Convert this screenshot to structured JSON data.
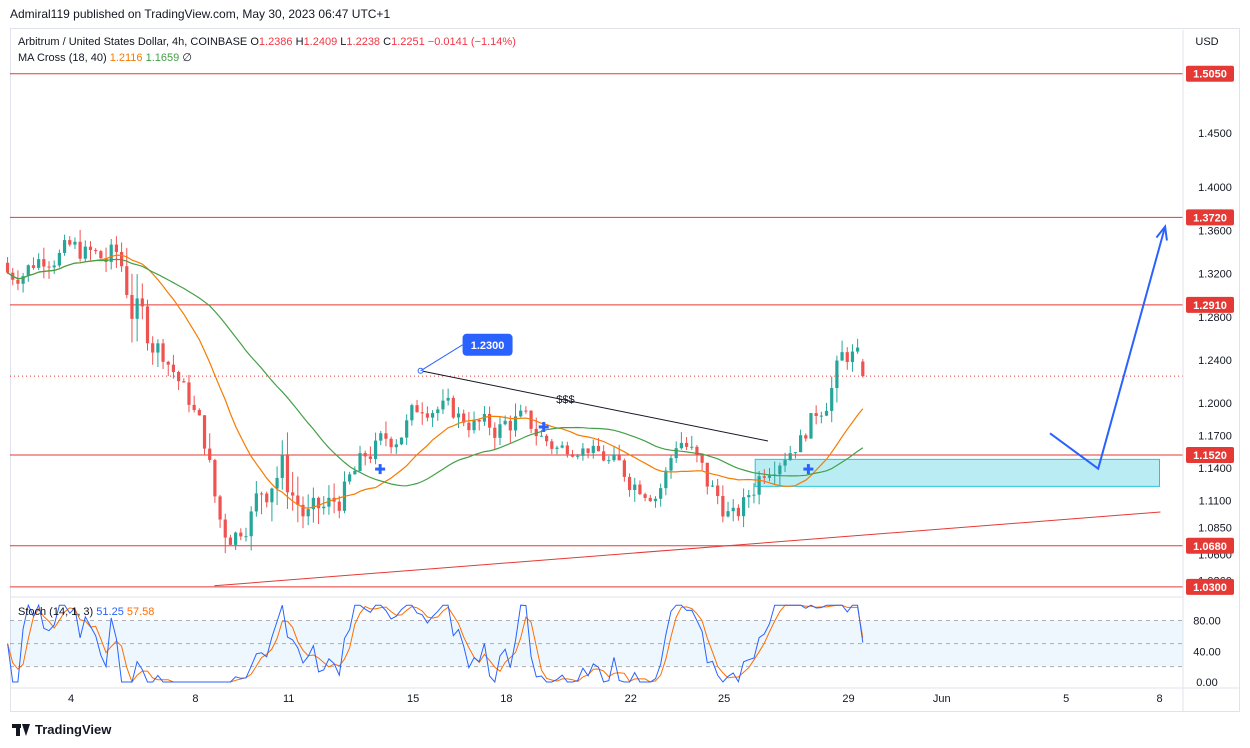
{
  "publisher": "Admiral119 published on TradingView.com, May 30, 2023 06:47 UTC+1",
  "legend": {
    "symbol": "Arbitrum / United States Dollar, 4h, COINBASE",
    "o_label": "O",
    "o": "1.2386",
    "h_label": "H",
    "h": "1.2409",
    "l_label": "L",
    "l": "1.2238",
    "c_label": "C",
    "c": "1.2251",
    "change": "−0.0141 (−1.14%)",
    "ma_label": "MA Cross (18, 40)",
    "ma_fast": "1.2116",
    "ma_slow": "1.1659",
    "ma_icon": "∅"
  },
  "stoch_legend": {
    "label": "Stoch (14, 1, 3)",
    "k": "51.25",
    "d": "57.58"
  },
  "footer": {
    "brand": "TradingView"
  },
  "colors": {
    "up": "#26a69a",
    "down": "#ef5350",
    "level": "#e53935",
    "ma_fast": "#f57c00",
    "ma_slow": "#43a047",
    "arrow": "#2962ff",
    "zone": "#80deea",
    "stoch_k": "#2962ff",
    "stoch_d": "#ff6d00"
  },
  "chart_data": {
    "type": "candlestick",
    "symbol": "ARB/USD",
    "timeframe": "4h",
    "currency": "USD",
    "ylim": [
      1.0215,
      1.5455
    ],
    "price_ticks": [
      "1.4500",
      "1.4000",
      "1.3600",
      "1.3200",
      "1.2800",
      "1.2400",
      "1.2000",
      "1.1700",
      "1.1400",
      "1.1100",
      "1.0850",
      "1.0600",
      "1.0360"
    ],
    "x_ticks": [
      {
        "label": "4",
        "day": 4
      },
      {
        "label": "8",
        "day": 8
      },
      {
        "label": "11",
        "day": 11
      },
      {
        "label": "15",
        "day": 15
      },
      {
        "label": "18",
        "day": 18
      },
      {
        "label": "22",
        "day": 22
      },
      {
        "label": "25",
        "day": 25
      },
      {
        "label": "29",
        "day": 29
      },
      {
        "label": "Jun",
        "day": 32
      },
      {
        "label": "5",
        "day": 36
      },
      {
        "label": "8",
        "day": 39
      }
    ],
    "day_start": 1.96,
    "levels": [
      {
        "price": 1.505,
        "label": "1.5050"
      },
      {
        "price": 1.372,
        "label": "1.3720"
      },
      {
        "price": 1.291,
        "label": "1.2910"
      },
      {
        "price": 1.152,
        "label": "1.1520"
      },
      {
        "price": 1.068,
        "label": "1.0680"
      },
      {
        "price": 1.03,
        "label": "1.0300"
      }
    ],
    "current_price": 1.2251,
    "high_marker": {
      "day": 15.24,
      "price": 1.23,
      "label": "1.2300"
    },
    "annotation_text": "$$$",
    "annotation_pos": {
      "day": 19.9,
      "price": 1.2
    },
    "trendline_top": {
      "from": {
        "day": 15.24,
        "price": 1.23
      },
      "to": {
        "day": 26.41,
        "price": 1.165
      }
    },
    "trendline_bottom": {
      "from": {
        "day": 8.61,
        "price": 1.031
      },
      "to": {
        "day": 39.03,
        "price": 1.0993
      }
    },
    "demand_zone": {
      "from_day": 26.0,
      "to_day": 39.0,
      "low": 1.123,
      "high": 1.148
    },
    "projection": [
      {
        "day": 35.48,
        "price": 1.1721
      },
      {
        "day": 37.03,
        "price": 1.1394
      },
      {
        "day": 39.18,
        "price": 1.3635
      }
    ],
    "buy_markers": [
      {
        "day": 13.94,
        "price": 1.139
      },
      {
        "day": 19.2,
        "price": 1.178
      },
      {
        "day": 27.71,
        "price": 1.139
      }
    ],
    "ohlc_ranges": [
      {
        "day": 2.0,
        "high": 1.334,
        "low": 1.296
      },
      {
        "day": 3.0,
        "high": 1.36,
        "low": 1.315
      },
      {
        "day": 4.0,
        "high": 1.365,
        "low": 1.32
      },
      {
        "day": 5.0,
        "high": 1.358,
        "low": 1.305
      },
      {
        "day": 5.5,
        "high": 1.372,
        "low": 1.3
      },
      {
        "day": 6.0,
        "high": 1.33,
        "low": 1.225
      },
      {
        "day": 7.0,
        "high": 1.265,
        "low": 1.222
      },
      {
        "day": 8.2,
        "high": 1.19,
        "low": 1.152
      },
      {
        "day": 8.7,
        "high": 1.125,
        "low": 1.031
      },
      {
        "day": 9.5,
        "high": 1.1,
        "low": 1.07
      },
      {
        "day": 10.5,
        "high": 1.211,
        "low": 1.09
      },
      {
        "day": 11.5,
        "high": 1.12,
        "low": 1.06
      },
      {
        "day": 12.5,
        "high": 1.14,
        "low": 1.08
      },
      {
        "day": 13.5,
        "high": 1.18,
        "low": 1.13
      },
      {
        "day": 14.5,
        "high": 1.198,
        "low": 1.15
      },
      {
        "day": 15.3,
        "high": 1.23,
        "low": 1.18
      },
      {
        "day": 16.5,
        "high": 1.205,
        "low": 1.165
      },
      {
        "day": 17.5,
        "high": 1.2,
        "low": 1.15
      },
      {
        "day": 18.3,
        "high": 1.212,
        "low": 1.16
      },
      {
        "day": 19.5,
        "high": 1.175,
        "low": 1.14
      },
      {
        "day": 20.5,
        "high": 1.17,
        "low": 1.15
      },
      {
        "day": 21.8,
        "high": 1.16,
        "low": 1.105
      },
      {
        "day": 22.8,
        "high": 1.13,
        "low": 1.1
      },
      {
        "day": 23.5,
        "high": 1.197,
        "low": 1.155
      },
      {
        "day": 24.3,
        "high": 1.16,
        "low": 1.09
      },
      {
        "day": 25.3,
        "high": 1.11,
        "low": 1.07
      },
      {
        "day": 26.3,
        "high": 1.18,
        "low": 1.12
      },
      {
        "day": 27.3,
        "high": 1.176,
        "low": 1.15
      },
      {
        "day": 28.2,
        "high": 1.24,
        "low": 1.18
      },
      {
        "day": 28.9,
        "high": 1.281,
        "low": 1.22
      },
      {
        "day": 29.6,
        "high": 1.2409,
        "low": 1.2238
      }
    ],
    "stochastic": {
      "k": 51.25,
      "d": 57.58,
      "ylim": [
        0,
        100
      ],
      "overbought": 80,
      "middle": 50,
      "oversold": 20,
      "ticks": [
        "80.00",
        "40.00",
        "0.00"
      ]
    }
  }
}
